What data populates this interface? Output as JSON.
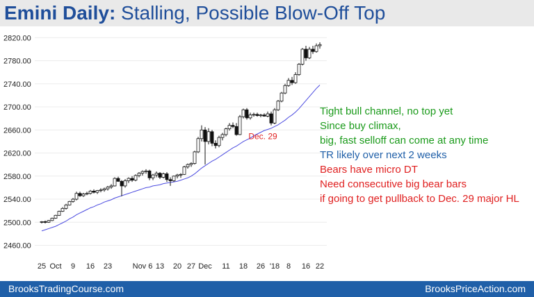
{
  "title": {
    "bold": "Emini Daily:",
    "rest": "Stalling, Possible Blow-Off Top"
  },
  "footer": {
    "left": "BrooksTradingCourse.com",
    "right": "BrooksPriceAction.com"
  },
  "notes": [
    {
      "text": "Tight bull channel, no top yet",
      "color": "#1a9a1a"
    },
    {
      "text": "Since buy climax,",
      "color": "#1a9a1a"
    },
    {
      "text": "big, fast selloff can come at any time",
      "color": "#1a9a1a"
    },
    {
      "text": "TR likely over next 2 weeks",
      "color": "#1f5fa8"
    },
    {
      "text": "Bears have micro DT",
      "color": "#e02020"
    },
    {
      "text": "Need consecutive big bear bars",
      "color": "#e02020"
    },
    {
      "text": "if going to get pullback to Dec. 29 major HL",
      "color": "#e02020"
    }
  ],
  "chart_data": {
    "type": "candlestick",
    "title": "Emini Daily: Stalling, Possible Blow-Off Top",
    "ylim": [
      2445,
      2830
    ],
    "y_ticks": [
      "2460.00",
      "2500.00",
      "2540.00",
      "2580.00",
      "2620.00",
      "2660.00",
      "2700.00",
      "2740.00",
      "2780.00",
      "2820.00"
    ],
    "x_ticks": [
      {
        "label": "25",
        "bar": 0
      },
      {
        "label": "Oct",
        "bar": 4
      },
      {
        "label": "9",
        "bar": 9
      },
      {
        "label": "16",
        "bar": 14
      },
      {
        "label": "23",
        "bar": 19
      },
      {
        "label": "Nov 6",
        "bar": 29
      },
      {
        "label": "13",
        "bar": 34
      },
      {
        "label": "20",
        "bar": 39
      },
      {
        "label": "27",
        "bar": 43
      },
      {
        "label": "Dec",
        "bar": 47
      },
      {
        "label": "11",
        "bar": 53
      },
      {
        "label": "18",
        "bar": 58
      },
      {
        "label": "26",
        "bar": 63
      },
      {
        "label": "'18",
        "bar": 67
      },
      {
        "label": "8",
        "bar": 71
      },
      {
        "label": "16",
        "bar": 76
      },
      {
        "label": "22",
        "bar": 80
      }
    ],
    "bars": [
      [
        2500,
        2502,
        2498,
        2501
      ],
      [
        2501,
        2503,
        2498,
        2500
      ],
      [
        2500,
        2504,
        2499,
        2503
      ],
      [
        2503,
        2508,
        2502,
        2507
      ],
      [
        2507,
        2513,
        2506,
        2512
      ],
      [
        2512,
        2520,
        2511,
        2519
      ],
      [
        2519,
        2526,
        2518,
        2524
      ],
      [
        2524,
        2532,
        2522,
        2530
      ],
      [
        2530,
        2537,
        2529,
        2536
      ],
      [
        2536,
        2542,
        2534,
        2540
      ],
      [
        2540,
        2553,
        2538,
        2550
      ],
      [
        2550,
        2553,
        2544,
        2546
      ],
      [
        2546,
        2551,
        2544,
        2549
      ],
      [
        2549,
        2553,
        2547,
        2550
      ],
      [
        2550,
        2556,
        2548,
        2554
      ],
      [
        2554,
        2557,
        2550,
        2552
      ],
      [
        2552,
        2556,
        2549,
        2555
      ],
      [
        2555,
        2559,
        2552,
        2556
      ],
      [
        2556,
        2560,
        2553,
        2558
      ],
      [
        2558,
        2563,
        2555,
        2561
      ],
      [
        2561,
        2566,
        2558,
        2563
      ],
      [
        2563,
        2578,
        2562,
        2576
      ],
      [
        2576,
        2579,
        2570,
        2571
      ],
      [
        2571,
        2573,
        2545,
        2563
      ],
      [
        2563,
        2575,
        2560,
        2572
      ],
      [
        2572,
        2578,
        2568,
        2576
      ],
      [
        2576,
        2580,
        2570,
        2573
      ],
      [
        2573,
        2583,
        2571,
        2581
      ],
      [
        2581,
        2587,
        2578,
        2585
      ],
      [
        2585,
        2590,
        2581,
        2588
      ],
      [
        2588,
        2592,
        2584,
        2589
      ],
      [
        2589,
        2591,
        2573,
        2577
      ],
      [
        2577,
        2584,
        2573,
        2582
      ],
      [
        2582,
        2588,
        2578,
        2585
      ],
      [
        2585,
        2587,
        2575,
        2578
      ],
      [
        2578,
        2586,
        2576,
        2584
      ],
      [
        2584,
        2587,
        2570,
        2574
      ],
      [
        2574,
        2578,
        2563,
        2572
      ],
      [
        2572,
        2581,
        2570,
        2580
      ],
      [
        2580,
        2584,
        2576,
        2582
      ],
      [
        2582,
        2585,
        2577,
        2583
      ],
      [
        2583,
        2598,
        2582,
        2596
      ],
      [
        2596,
        2602,
        2593,
        2600
      ],
      [
        2600,
        2604,
        2596,
        2602
      ],
      [
        2602,
        2624,
        2600,
        2622
      ],
      [
        2622,
        2648,
        2620,
        2645
      ],
      [
        2645,
        2668,
        2640,
        2660
      ],
      [
        2660,
        2665,
        2600,
        2640
      ],
      [
        2640,
        2663,
        2635,
        2657
      ],
      [
        2657,
        2660,
        2632,
        2637
      ],
      [
        2637,
        2642,
        2628,
        2633
      ],
      [
        2633,
        2650,
        2630,
        2647
      ],
      [
        2647,
        2655,
        2642,
        2652
      ],
      [
        2652,
        2664,
        2649,
        2662
      ],
      [
        2662,
        2672,
        2659,
        2668
      ],
      [
        2668,
        2673,
        2663,
        2666
      ],
      [
        2666,
        2672,
        2650,
        2652
      ],
      [
        2652,
        2686,
        2651,
        2683
      ],
      [
        2683,
        2697,
        2680,
        2695
      ],
      [
        2695,
        2698,
        2678,
        2681
      ],
      [
        2681,
        2690,
        2678,
        2686
      ],
      [
        2686,
        2690,
        2683,
        2687
      ],
      [
        2687,
        2690,
        2683,
        2685
      ],
      [
        2685,
        2688,
        2682,
        2686
      ],
      [
        2686,
        2689,
        2683,
        2684
      ],
      [
        2684,
        2692,
        2682,
        2688
      ],
      [
        2688,
        2692,
        2668,
        2672
      ],
      [
        2672,
        2698,
        2670,
        2695
      ],
      [
        2695,
        2712,
        2693,
        2710
      ],
      [
        2710,
        2726,
        2708,
        2724
      ],
      [
        2724,
        2740,
        2722,
        2737
      ],
      [
        2737,
        2750,
        2735,
        2746
      ],
      [
        2746,
        2752,
        2738,
        2742
      ],
      [
        2742,
        2760,
        2740,
        2756
      ],
      [
        2756,
        2776,
        2754,
        2774
      ],
      [
        2774,
        2802,
        2772,
        2800
      ],
      [
        2800,
        2806,
        2780,
        2785
      ],
      [
        2785,
        2804,
        2783,
        2800
      ],
      [
        2800,
        2806,
        2792,
        2796
      ],
      [
        2796,
        2810,
        2794,
        2806
      ],
      [
        2806,
        2812,
        2801,
        2808
      ]
    ],
    "ema": [
      2485,
      2487,
      2489,
      2491,
      2493,
      2496,
      2499,
      2502,
      2506,
      2509,
      2513,
      2516,
      2519,
      2522,
      2525,
      2527,
      2530,
      2532,
      2535,
      2537,
      2539,
      2542,
      2544,
      2546,
      2548,
      2550,
      2552,
      2554,
      2556,
      2558,
      2560,
      2561,
      2563,
      2564,
      2565,
      2567,
      2568,
      2569,
      2570,
      2571,
      2573,
      2575,
      2577,
      2580,
      2584,
      2589,
      2594,
      2598,
      2602,
      2606,
      2609,
      2613,
      2617,
      2621,
      2625,
      2629,
      2632,
      2636,
      2640,
      2643,
      2646,
      2650,
      2653,
      2656,
      2659,
      2661,
      2663,
      2666,
      2669,
      2673,
      2677,
      2682,
      2686,
      2691,
      2697,
      2704,
      2711,
      2718,
      2725,
      2732,
      2738
    ],
    "annotation": {
      "text": "Dec. 29",
      "bar": 66,
      "y": 2649
    }
  }
}
